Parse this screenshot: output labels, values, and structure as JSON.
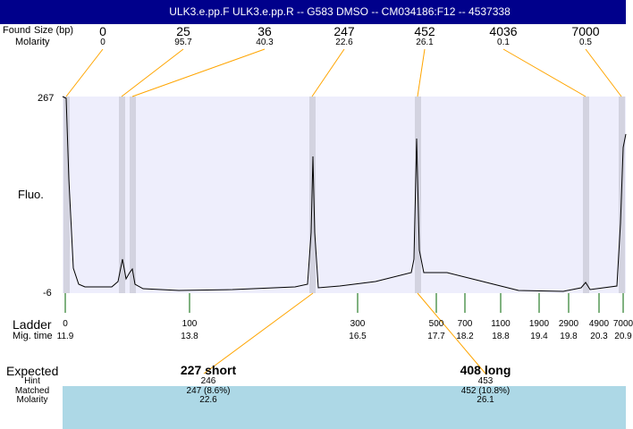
{
  "header": {
    "title": "ULK3.e.pp.F  ULK3.e.pp.R -- G583 DMSO -- CM034186:F12 -- 4537338"
  },
  "row_labels": {
    "found": "Found",
    "size": "Size (bp)",
    "molarity": "Molarity",
    "fluo": "Fluo.",
    "ladder": "Ladder",
    "mig_time": "Mig. time",
    "expected": "Expected",
    "hint": "Hint",
    "matched": "Matched",
    "molarity2": "Molarity"
  },
  "chart_data": {
    "type": "line",
    "ylabel": "Fluo.",
    "ylim": [
      -6,
      267
    ],
    "y_ticks": [
      "267",
      "-6"
    ],
    "peaks": [
      {
        "size": "0",
        "molarity": "0"
      },
      {
        "size": "25",
        "molarity": "95.7"
      },
      {
        "size": "36",
        "molarity": "40.3"
      },
      {
        "size": "247",
        "molarity": "22.6"
      },
      {
        "size": "452",
        "molarity": "26.1"
      },
      {
        "size": "4036",
        "molarity": "0.1"
      },
      {
        "size": "7000",
        "molarity": "0.5"
      }
    ],
    "ladder": [
      {
        "bp": "0",
        "time": "11.9"
      },
      {
        "bp": "100",
        "time": "13.8"
      },
      {
        "bp": "300",
        "time": "16.5"
      },
      {
        "bp": "500",
        "time": "17.7"
      },
      {
        "bp": "700",
        "time": "18.2"
      },
      {
        "bp": "1100",
        "time": "18.8"
      },
      {
        "bp": "1900",
        "time": "19.4"
      },
      {
        "bp": "2900",
        "time": "19.8"
      },
      {
        "bp": "4900",
        "time": "20.3"
      },
      {
        "bp": "7000",
        "time": "20.9"
      }
    ],
    "expected": [
      {
        "label": "227 short",
        "hint": "246",
        "matched": "247 (8.6%)",
        "molarity": "22.6"
      },
      {
        "label": "408 long",
        "hint": "453",
        "matched": "452 (10.8%)",
        "molarity": "26.1"
      }
    ],
    "colors": {
      "plot_bg": "#eeeefc",
      "band": "#d3d3e0",
      "leader": "#ffa500",
      "ladder_tick": "#006400",
      "matched_bar": "#add8e6",
      "header": "#00008b"
    }
  }
}
